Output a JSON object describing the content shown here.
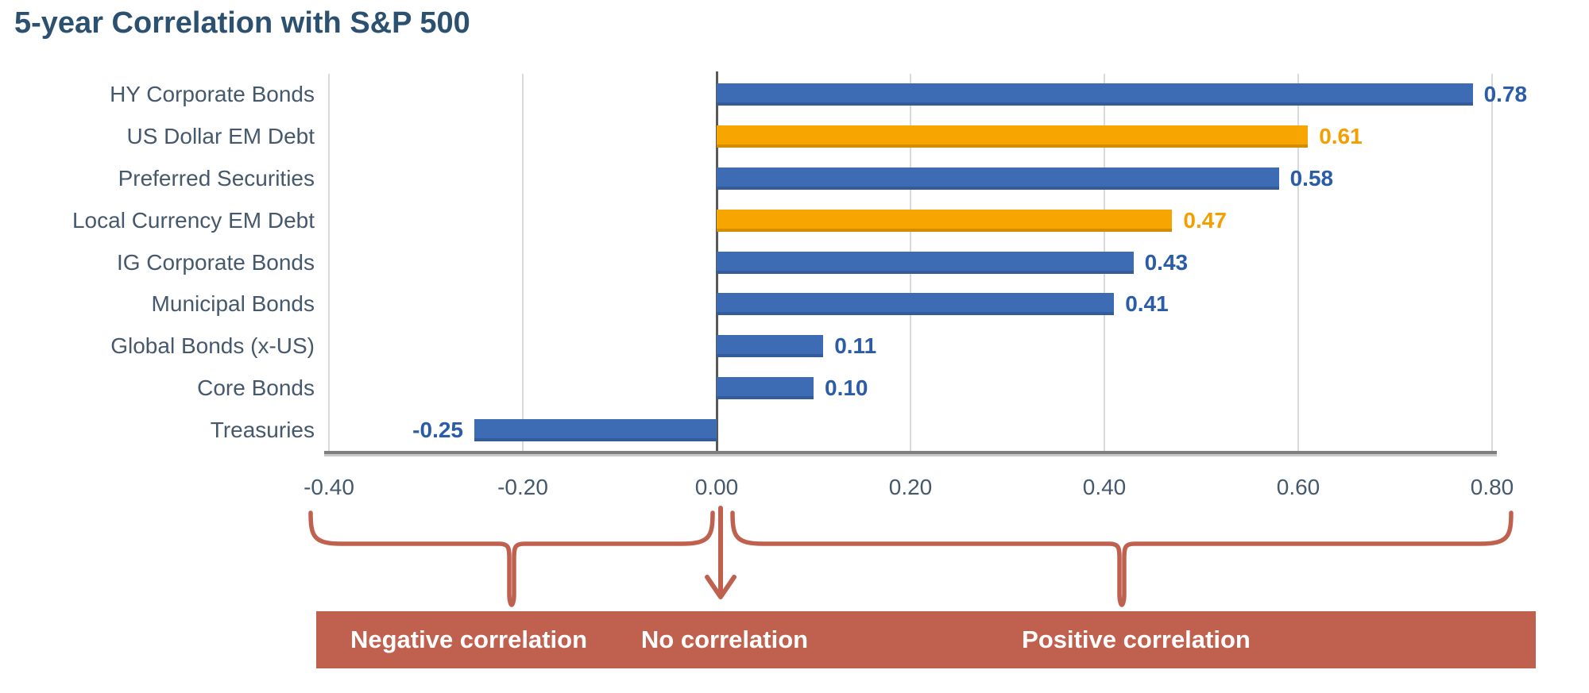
{
  "title": "5-year Correlation with S&P 500",
  "colors": {
    "title_text": "#2C5170",
    "category_text": "#46586B",
    "tick_text": "#46586B",
    "blue_bar": "#3E6CB4",
    "orange_bar": "#F7A500",
    "blue_value_text": "#2B5CA8",
    "orange_value_text": "#F59E00",
    "gridline": "#D9D9D9",
    "zero_line": "#595959",
    "axis_line": "#7E7E7E",
    "axis_line_shadow": "#C8C8C8",
    "annotation": "#C0614F",
    "banner_text": "#FFFFFF"
  },
  "chart_data": {
    "type": "bar",
    "orientation": "horizontal",
    "title": "5-year Correlation with S&P 500",
    "categories": [
      "HY Corporate Bonds",
      "US Dollar EM Debt",
      "Preferred Securities",
      "Local Currency EM Debt",
      "IG Corporate Bonds",
      "Municipal Bonds",
      "Global Bonds (x-US)",
      "Core Bonds",
      "Treasuries"
    ],
    "values": [
      0.78,
      0.61,
      0.58,
      0.47,
      0.43,
      0.41,
      0.11,
      0.1,
      -0.25
    ],
    "value_labels": [
      "0.78",
      "0.61",
      "0.58",
      "0.47",
      "0.43",
      "0.41",
      "0.11",
      "0.10",
      "-0.25"
    ],
    "bar_color_keys": [
      "blue",
      "orange",
      "blue",
      "orange",
      "blue",
      "blue",
      "blue",
      "blue",
      "blue"
    ],
    "xlim": [
      -0.4,
      0.8
    ],
    "tick_step": 0.2,
    "tick_labels": [
      "-0.40",
      "-0.20",
      "0.00",
      "0.20",
      "0.40",
      "0.60",
      "0.80"
    ],
    "grid": true,
    "legend": false,
    "xlabel": "",
    "ylabel": ""
  },
  "annotation": {
    "negative_label": "Negative correlation",
    "no_label": "No correlation",
    "positive_label": "Positive correlation"
  }
}
